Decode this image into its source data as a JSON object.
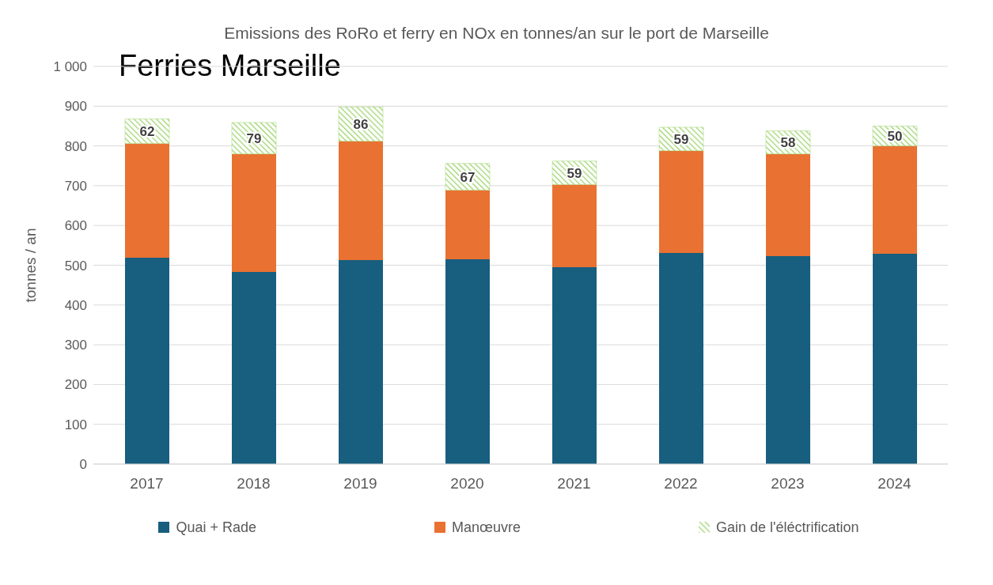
{
  "chart_data": {
    "type": "bar",
    "title": "Emissions des RoRo et ferry en NOx en tonnes/an sur le port de Marseille",
    "subtitle": "Ferries Marseille",
    "ylabel": "tonnes / an",
    "categories": [
      "2017",
      "2018",
      "2019",
      "2020",
      "2021",
      "2022",
      "2023",
      "2024"
    ],
    "stacked": true,
    "series": [
      {
        "name": "Quai + Rade",
        "color": "#175e7f",
        "values": [
          519,
          483,
          513,
          515,
          495,
          531,
          523,
          529
        ]
      },
      {
        "name": "Manœuvre",
        "color": "#e97132",
        "values": [
          287,
          297,
          299,
          174,
          208,
          257,
          257,
          271
        ]
      },
      {
        "name": "Gain de l'éléctrification",
        "color": "#9bd46a",
        "values": [
          62,
          79,
          86,
          67,
          59,
          59,
          58,
          50
        ],
        "value_labels": [
          "62",
          "79",
          "86",
          "67",
          "59",
          "59",
          "58",
          "50"
        ]
      }
    ],
    "ylim": [
      0,
      1000
    ],
    "yticks": [
      0,
      100,
      200,
      300,
      400,
      500,
      600,
      700,
      800,
      900,
      {
        "value": 1000,
        "label": "1 000"
      }
    ],
    "grid": "y",
    "legend": "bottom"
  }
}
